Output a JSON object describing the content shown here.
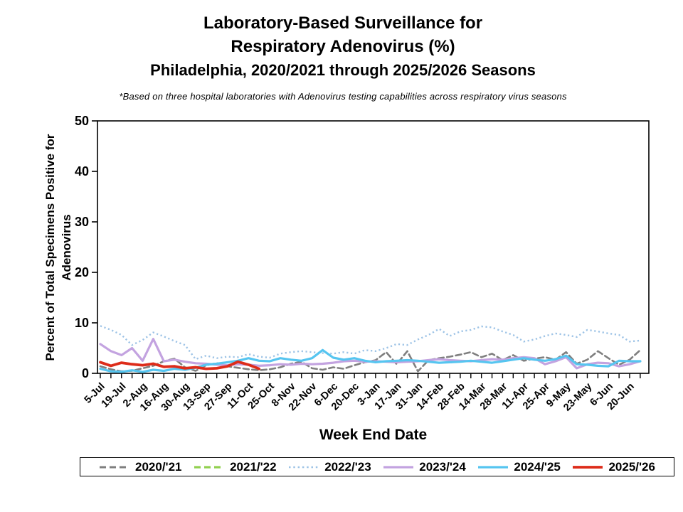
{
  "header": {
    "title_line1": "Laboratory-Based Surveillance for",
    "title_line2": "Respiratory Adenovirus (%)",
    "title_line3": "Philadelphia, 2020/2021 through 2025/2026 Seasons",
    "footnote": "*Based on three hospital laboratories with Adenovirus testing capabilities across respiratory virus seasons"
  },
  "chart_data": {
    "type": "line",
    "title": "Laboratory-Based Surveillance for Respiratory Adenovirus (%)",
    "xlabel": "Week End Date",
    "ylabel": "Percent of Total Specimens Positive for Adenovirus",
    "ylabel_lines": [
      "Percent of Total Specimens Positive for",
      "Adenovirus"
    ],
    "ylim": [
      0,
      50
    ],
    "yticks": [
      0,
      10,
      20,
      30,
      40,
      50
    ],
    "grid": false,
    "legend_position": "bottom",
    "weeks_total": 52,
    "x_tick_labels": [
      "5-Jul",
      "19-Jul",
      "2-Aug",
      "16-Aug",
      "30-Aug",
      "13-Sep",
      "27-Sep",
      "11-Oct",
      "25-Oct",
      "8-Nov",
      "22-Nov",
      "6-Dec",
      "20-Dec",
      "3-Jan",
      "17-Jan",
      "31-Jan",
      "14-Feb",
      "28-Feb",
      "14-Mar",
      "28-Mar",
      "11-Apr",
      "25-Apr",
      "9-May",
      "23-May",
      "6-Jun",
      "20-Jun"
    ],
    "series": [
      {
        "name": "2020/'21",
        "color": "#7f7f7f",
        "style": "dashed",
        "width": 2.6,
        "values": [
          1.4,
          0.8,
          0.4,
          0.5,
          1.0,
          1.5,
          2.4,
          2.9,
          1.2,
          0.5,
          1.6,
          2.0,
          1.4,
          1.1,
          0.8,
          0.6,
          0.8,
          1.2,
          1.9,
          2.3,
          1.0,
          0.7,
          1.2,
          0.9,
          1.6,
          2.2,
          2.6,
          4.2,
          1.8,
          4.4,
          0.4,
          2.6,
          3.0,
          3.3,
          3.7,
          4.2,
          3.2,
          3.9,
          2.6,
          3.6,
          2.5,
          2.9,
          3.2,
          2.7,
          4.2,
          1.9,
          2.7,
          4.4,
          3.0,
          1.7,
          2.7,
          4.6
        ]
      },
      {
        "name": "2021/'22",
        "color": "#92d050",
        "style": "dashed",
        "width": 3.2,
        "values": [
          null,
          null,
          null,
          null,
          null,
          null,
          null,
          null,
          null,
          null,
          null,
          null,
          null,
          null,
          null,
          null,
          null,
          null,
          null,
          null,
          null,
          null,
          null,
          null,
          null,
          null,
          null,
          null,
          null,
          null,
          null,
          null,
          null,
          null,
          null,
          null,
          null,
          null,
          null,
          null,
          null,
          null,
          null,
          null,
          null,
          null,
          null,
          null,
          null,
          null,
          null,
          null
        ]
      },
      {
        "name": "2022/'23",
        "color": "#9dc3e6",
        "style": "dotted",
        "width": 2.4,
        "values": [
          9.4,
          8.6,
          7.6,
          5.6,
          6.6,
          8.1,
          7.3,
          6.4,
          5.6,
          2.8,
          3.5,
          3.0,
          3.3,
          3.2,
          3.8,
          3.3,
          3.1,
          3.9,
          4.2,
          4.4,
          4.2,
          4.0,
          3.9,
          4.2,
          3.9,
          4.6,
          4.4,
          5.0,
          5.8,
          5.6,
          6.7,
          7.6,
          8.8,
          7.4,
          8.3,
          8.6,
          9.3,
          9.1,
          8.3,
          7.6,
          6.3,
          6.7,
          7.4,
          7.9,
          7.6,
          7.2,
          8.6,
          8.3,
          7.9,
          7.6,
          6.3,
          6.5
        ]
      },
      {
        "name": "2023/'24",
        "color": "#c3a3e0",
        "style": "solid",
        "width": 3.2,
        "values": [
          5.8,
          4.4,
          3.6,
          5.0,
          2.5,
          6.8,
          2.4,
          2.7,
          2.3,
          2.0,
          1.9,
          1.7,
          1.6,
          1.8,
          1.7,
          1.5,
          1.6,
          1.8,
          1.7,
          1.9,
          1.8,
          1.9,
          2.1,
          2.4,
          2.5,
          2.3,
          2.4,
          2.3,
          2.2,
          2.3,
          2.4,
          2.6,
          2.8,
          2.6,
          2.5,
          2.4,
          2.6,
          2.8,
          2.7,
          3.0,
          3.2,
          3.0,
          1.8,
          2.4,
          3.2,
          1.0,
          1.8,
          2.1,
          2.0,
          1.4,
          1.8,
          2.4
        ]
      },
      {
        "name": "2024/'25",
        "color": "#56c5f0",
        "style": "solid",
        "width": 3.2,
        "values": [
          0.9,
          0.4,
          0.3,
          0.6,
          0.3,
          0.7,
          0.5,
          0.9,
          0.7,
          1.1,
          1.7,
          1.9,
          2.2,
          2.5,
          3.0,
          2.5,
          2.4,
          3.0,
          2.7,
          2.5,
          3.0,
          4.6,
          3.1,
          2.7,
          3.0,
          2.5,
          2.2,
          2.4,
          2.5,
          2.6,
          2.5,
          2.3,
          2.1,
          2.2,
          2.3,
          2.5,
          2.3,
          2.1,
          2.4,
          2.7,
          3.0,
          2.7,
          2.5,
          2.8,
          3.5,
          1.8,
          1.7,
          1.5,
          1.4,
          2.5,
          2.4,
          2.4
        ]
      },
      {
        "name": "2025/'26",
        "color": "#dd2c1a",
        "style": "solid",
        "width": 3.8,
        "values": [
          2.2,
          1.5,
          2.1,
          1.8,
          1.6,
          1.9,
          1.3,
          1.4,
          1.0,
          1.2,
          0.9,
          1.0,
          1.4,
          2.3,
          1.7,
          0.9,
          null,
          null,
          null,
          null,
          null,
          null,
          null,
          null,
          null,
          null,
          null,
          null,
          null,
          null,
          null,
          null,
          null,
          null,
          null,
          null,
          null,
          null,
          null,
          null,
          null,
          null,
          null,
          null,
          null,
          null,
          null,
          null,
          null,
          null,
          null,
          null
        ]
      }
    ]
  }
}
